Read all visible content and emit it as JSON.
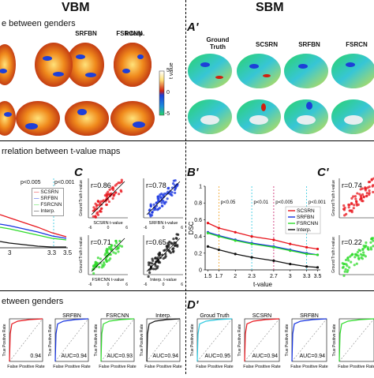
{
  "headers": {
    "left": "VBM",
    "right": "SBM"
  },
  "rowA": {
    "left_title": "e between genders",
    "right_letter": "A'",
    "vbm_labels": [
      "SRFBN",
      "FSRCNN",
      "Interp."
    ],
    "sbm_labels": [
      "Ground Truth",
      "SCSRN",
      "SRFBN",
      "FSRCN"
    ],
    "colorbar": {
      "label": "t value",
      "ticks": [
        "5",
        "0",
        "-5"
      ]
    }
  },
  "rowB": {
    "left_title": "rrelation between t-value maps",
    "letter_c": "C",
    "letter_bp": "B'",
    "letter_cp": "C'",
    "left_plot": {
      "annotations": [
        "p<0.005",
        "p<0.001"
      ],
      "legend": [
        "SCSRN",
        "SRFBN",
        "FSRCNN",
        "Interp."
      ],
      "x_ticks": [
        "3",
        "3.3",
        "3.5"
      ]
    },
    "scatter": [
      {
        "r": "r=0.86",
        "xlabel": "SCSRN t-value",
        "ylabel": "Ground Truth t-value",
        "color": "#e8141b"
      },
      {
        "r": "r=0.78",
        "xlabel": "SRFBN t-value",
        "ylabel": "",
        "color": "#1432e0"
      },
      {
        "r": "r=0.71",
        "xlabel": "FSRCNN t-value",
        "ylabel": "Ground Truth t-value",
        "color": "#2edb2a"
      },
      {
        "r": "r=0.65",
        "xlabel": "Interp. t-value",
        "ylabel": "",
        "color": "#111111"
      }
    ],
    "scatter_ticks": [
      "-6",
      "0",
      "6"
    ],
    "dsc_plot": {
      "ylabel": "DSC",
      "xlabel": "t-value",
      "y_ticks": [
        "1",
        "0.8",
        "0.6",
        "0.4",
        "0.2",
        "0"
      ],
      "x_ticks": [
        "1.5",
        "1.7",
        "2",
        "2.3",
        "2.7",
        "3",
        "3.3",
        "3.5"
      ],
      "annotations": [
        "p<0.05",
        "p<0.01",
        "p<0.005",
        "p<0.001"
      ],
      "legend": [
        "SCSRN",
        "SRFBN",
        "FSRCNN",
        "Interp."
      ]
    },
    "right_scatter": [
      {
        "r": "r=0.74",
        "ylabel": "Ground Truth t-value"
      },
      {
        "r": "r=0.22",
        "ylabel": "Ground Truth t-value"
      }
    ]
  },
  "rowD": {
    "left_title": "etween genders",
    "letter_dp": "D'",
    "axis_y": "True Positive Rate",
    "axis_x": "False Positive Rate",
    "left_rocs": [
      {
        "title": "",
        "auc": "0.94",
        "color": "#e8141b"
      },
      {
        "title": "SRFBN",
        "auc": "AUC=0.94",
        "color": "#1432e0"
      },
      {
        "title": "FSRCNN",
        "auc": "AUC=0.93",
        "color": "#2edb2a"
      },
      {
        "title": "Interp.",
        "auc": "AUC=0.94",
        "color": "#111111"
      }
    ],
    "right_rocs": [
      {
        "title": "Groud Truth",
        "auc": "AUC=0.95",
        "color": "#2cc8e0"
      },
      {
        "title": "SCSRN",
        "auc": "AUC=0.94",
        "color": "#e8141b"
      },
      {
        "title": "SRFBN",
        "auc": "AUC=0.94",
        "color": "#1432e0"
      },
      {
        "title": "",
        "auc": "",
        "color": "#2edb2a"
      }
    ]
  },
  "chart_data": [
    {
      "type": "line",
      "title": "",
      "xlabel": "t-value",
      "ylabel": "DSC",
      "x": [
        1.5,
        1.7,
        2.0,
        2.3,
        2.7,
        3.0,
        3.3,
        3.5
      ],
      "ylim": [
        0,
        1
      ],
      "series": [
        {
          "name": "SCSRN",
          "values": [
            0.56,
            0.5,
            0.45,
            0.4,
            0.36,
            0.31,
            0.27,
            0.25
          ],
          "color": "#e8141b"
        },
        {
          "name": "SRFBN",
          "values": [
            0.45,
            0.41,
            0.36,
            0.32,
            0.28,
            0.24,
            0.2,
            0.18
          ],
          "color": "#1432e0"
        },
        {
          "name": "FSRCNN",
          "values": [
            0.44,
            0.4,
            0.35,
            0.31,
            0.27,
            0.23,
            0.19,
            0.18
          ],
          "color": "#2edb2a"
        },
        {
          "name": "Interp.",
          "values": [
            0.28,
            0.24,
            0.19,
            0.15,
            0.11,
            0.07,
            0.04,
            0.03
          ],
          "color": "#111111"
        }
      ]
    }
  ]
}
